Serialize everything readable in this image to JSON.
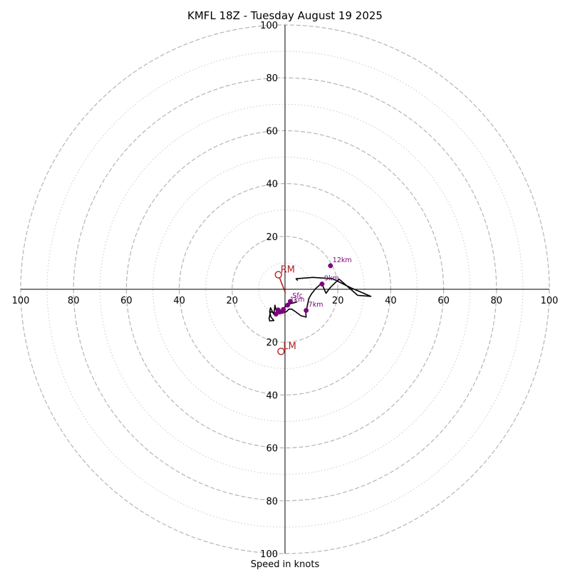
{
  "chart_data": {
    "type": "hodograph",
    "title": "KMFL 18Z - Tuesday August 19 2025",
    "xlabel": "Speed in knots",
    "units": "knots",
    "range": [
      -100,
      100
    ],
    "dashed_rings": [
      20,
      40,
      60,
      80,
      100
    ],
    "dotted_rings": [
      10,
      30,
      50,
      70,
      90
    ],
    "axis_ticks": [
      {
        "v": 20,
        "label": "20"
      },
      {
        "v": 40,
        "label": "40"
      },
      {
        "v": 60,
        "label": "60"
      },
      {
        "v": 80,
        "label": "80"
      },
      {
        "v": 100,
        "label": "100"
      }
    ],
    "wind_trace": [
      [
        4.5,
        -4.8
      ],
      [
        2.0,
        -5.5
      ],
      [
        0.3,
        -6.5
      ],
      [
        -1.5,
        -8.0
      ],
      [
        -2.8,
        -8.7
      ],
      [
        -3.4,
        -8.0
      ],
      [
        -3.8,
        -6.0
      ],
      [
        -4.2,
        -9.5
      ],
      [
        -5.5,
        -7.0
      ],
      [
        -5.8,
        -8.5
      ],
      [
        -5.3,
        -10.5
      ],
      [
        -4.2,
        -11.8
      ],
      [
        -5.8,
        -12.0
      ],
      [
        -6.0,
        -11.0
      ],
      [
        -5.5,
        -8.5
      ],
      [
        -3.5,
        -9.0
      ],
      [
        -1.5,
        -9.0
      ],
      [
        0.5,
        -8.5
      ],
      [
        1.5,
        -7.5
      ],
      [
        2.5,
        -7.5
      ],
      [
        4.0,
        -8.5
      ],
      [
        6.0,
        -10.0
      ],
      [
        8.0,
        -10.5
      ],
      [
        7.8,
        -8.0
      ],
      [
        8.2,
        -7.5
      ],
      [
        9.0,
        -3.5
      ],
      [
        10.0,
        -1.8
      ],
      [
        11.5,
        0.2
      ],
      [
        13.0,
        1.5
      ],
      [
        14.0,
        2.0
      ],
      [
        15.5,
        -1.5
      ],
      [
        17.0,
        0.5
      ],
      [
        19.0,
        2.5
      ],
      [
        20.5,
        3.8
      ],
      [
        27.5,
        -2.3
      ],
      [
        32.5,
        -2.7
      ],
      [
        25.0,
        0.5
      ],
      [
        18.0,
        4.0
      ],
      [
        10.5,
        4.5
      ],
      [
        4.2,
        4.0
      ],
      [
        4.8,
        3.3
      ]
    ],
    "height_markers": [
      {
        "u": 2.0,
        "v": -4.6,
        "label": "Sfc"
      },
      {
        "u": 1.0,
        "v": -6.0,
        "label": "1km"
      },
      {
        "u": -0.6,
        "v": -7.6,
        "label": ""
      },
      {
        "u": -2.0,
        "v": -8.6,
        "label": ""
      },
      {
        "u": -3.4,
        "v": -9.4,
        "label": ""
      },
      {
        "u": -2.6,
        "v": -7.8,
        "label": ""
      },
      {
        "u": -1.0,
        "v": -8.4,
        "label": ""
      },
      {
        "u": 8.0,
        "v": -8.0,
        "label": "7km"
      },
      {
        "u": 14.0,
        "v": 2.0,
        "label": "9km"
      },
      {
        "u": 17.2,
        "v": 8.9,
        "label": "12km"
      }
    ],
    "storm_motion": [
      {
        "label": "RM",
        "u": -2.5,
        "v": 5.5
      },
      {
        "label": "LM",
        "u": -1.5,
        "v": -23.5
      }
    ],
    "rm_vector": {
      "from": [
        0.2,
        -1.5
      ],
      "to": [
        -2.5,
        5.5
      ]
    },
    "colors": {
      "trace": "#000000",
      "height_marker": "#800080",
      "storm_motion": "#b22222",
      "dashed_ring": "#b5b5b5",
      "dotted_ring": "#c9c9c9",
      "axis": "#000000"
    }
  }
}
